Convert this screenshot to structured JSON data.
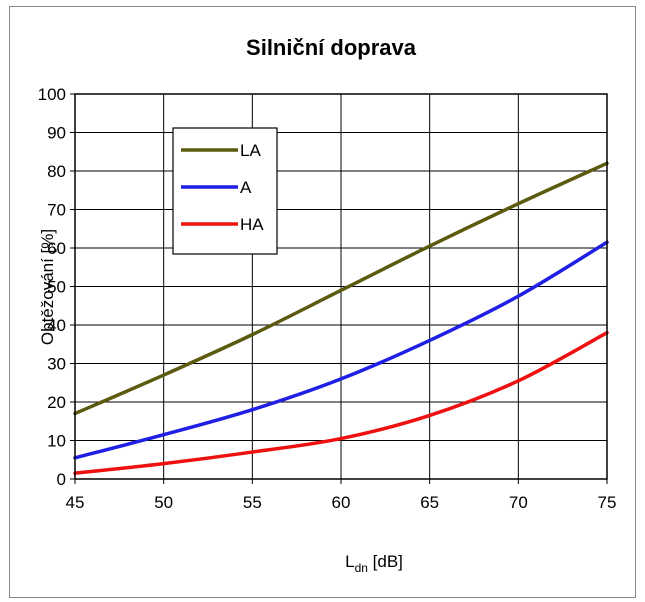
{
  "chart_data": {
    "type": "line",
    "title": "Silniční doprava",
    "xlabel_main": "L",
    "xlabel_sub": "dn",
    "xlabel_unit": " [dB]",
    "ylabel": "Obtěžování [%]",
    "xlim": [
      45,
      75
    ],
    "ylim": [
      0,
      100
    ],
    "xticks": [
      "45",
      "50",
      "55",
      "60",
      "65",
      "70",
      "75"
    ],
    "yticks": [
      "0",
      "10",
      "20",
      "30",
      "40",
      "50",
      "60",
      "70",
      "80",
      "90",
      "100"
    ],
    "grid": true,
    "legend_position": "top-left",
    "x": [
      45,
      50,
      55,
      60,
      65,
      70,
      75
    ],
    "series": [
      {
        "name": "LA",
        "color": "#5b5a0e",
        "values": [
          17,
          27,
          37.5,
          49,
          60.5,
          71.5,
          82
        ]
      },
      {
        "name": "A",
        "color": "#1f1fe6",
        "values": [
          5.5,
          11.5,
          18,
          26,
          36,
          47.5,
          61.5
        ]
      },
      {
        "name": "HA",
        "color": "#ee1111",
        "values": [
          1.5,
          4,
          7,
          10.5,
          16.5,
          25.5,
          38
        ]
      }
    ]
  }
}
